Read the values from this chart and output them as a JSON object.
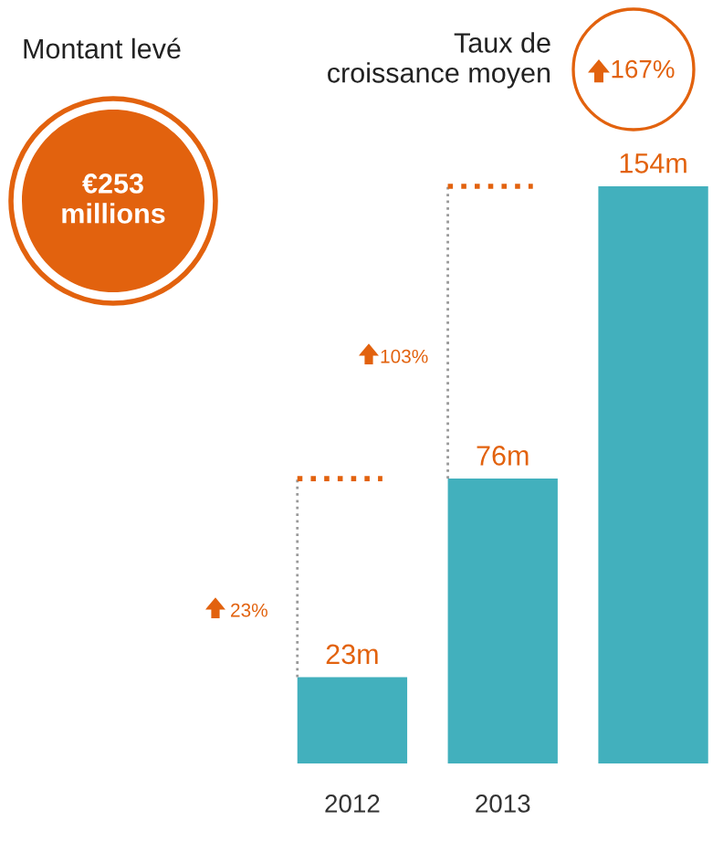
{
  "chart_data": {
    "type": "bar",
    "categories": [
      "2012",
      "2013",
      null
    ],
    "values": [
      23,
      76,
      154
    ],
    "value_labels": [
      "23m",
      "76m",
      "154m"
    ],
    "color": "#42b0bd",
    "annotations": [
      "Montant levé",
      "€253\nmillions",
      "Taux de\ncroissance moyen",
      "167%",
      "23%",
      "103%"
    ]
  }
}
